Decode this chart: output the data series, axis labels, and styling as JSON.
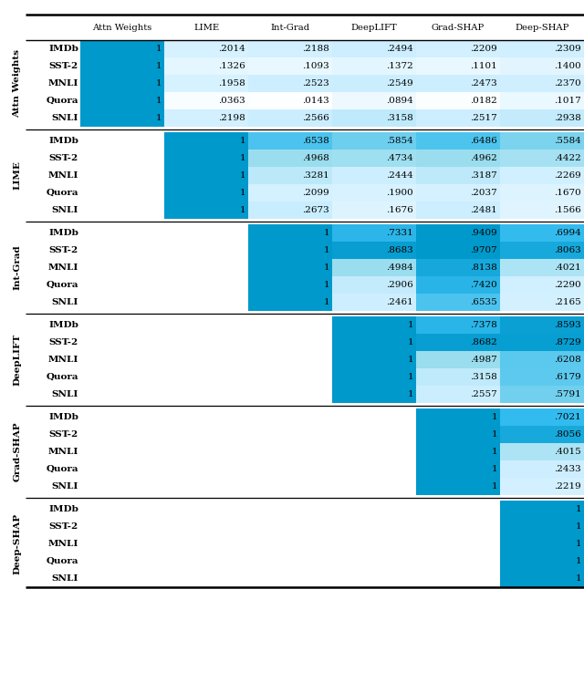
{
  "col_headers": [
    "Attn Weights",
    "LIME",
    "Int-Grad",
    "DeepLIFT",
    "Grad-SHAP",
    "Deep-SHAP"
  ],
  "row_groups": [
    "Attn Weights",
    "LIME",
    "Int-Grad",
    "DeepLIFT",
    "Grad-SHAP",
    "Deep-SHAP"
  ],
  "datasets": [
    "IMDb",
    "SST-2",
    "MNLI",
    "Quora",
    "SNLI"
  ],
  "values": [
    [
      1,
      0.2014,
      0.2188,
      0.2494,
      0.2209,
      0.2309
    ],
    [
      1,
      0.1326,
      0.1093,
      0.1372,
      0.1101,
      0.14
    ],
    [
      1,
      0.1958,
      0.2523,
      0.2549,
      0.2473,
      0.237
    ],
    [
      1,
      0.0363,
      0.0143,
      0.0894,
      0.0182,
      0.1017
    ],
    [
      1,
      0.2198,
      0.2566,
      0.3158,
      0.2517,
      0.2938
    ],
    [
      null,
      1,
      0.6538,
      0.5854,
      0.6486,
      0.5584
    ],
    [
      null,
      1,
      0.4968,
      0.4734,
      0.4962,
      0.4422
    ],
    [
      null,
      1,
      0.3281,
      0.2444,
      0.3187,
      0.2269
    ],
    [
      null,
      1,
      0.2099,
      0.19,
      0.2037,
      0.167
    ],
    [
      null,
      1,
      0.2673,
      0.1676,
      0.2481,
      0.1566
    ],
    [
      null,
      null,
      1,
      0.7331,
      0.9409,
      0.6994
    ],
    [
      null,
      null,
      1,
      0.8683,
      0.9707,
      0.8063
    ],
    [
      null,
      null,
      1,
      0.4984,
      0.8138,
      0.4021
    ],
    [
      null,
      null,
      1,
      0.2906,
      0.742,
      0.229
    ],
    [
      null,
      null,
      1,
      0.2461,
      0.6535,
      0.2165
    ],
    [
      null,
      null,
      null,
      1,
      0.7378,
      0.8593
    ],
    [
      null,
      null,
      null,
      1,
      0.8682,
      0.8729
    ],
    [
      null,
      null,
      null,
      1,
      0.4987,
      0.6208
    ],
    [
      null,
      null,
      null,
      1,
      0.3158,
      0.6179
    ],
    [
      null,
      null,
      null,
      1,
      0.2557,
      0.5791
    ],
    [
      null,
      null,
      null,
      null,
      1,
      0.7021
    ],
    [
      null,
      null,
      null,
      null,
      1,
      0.8056
    ],
    [
      null,
      null,
      null,
      null,
      1,
      0.4015
    ],
    [
      null,
      null,
      null,
      null,
      1,
      0.2433
    ],
    [
      null,
      null,
      null,
      null,
      1,
      0.2219
    ],
    [
      null,
      null,
      null,
      null,
      null,
      1
    ],
    [
      null,
      null,
      null,
      null,
      null,
      1
    ],
    [
      null,
      null,
      null,
      null,
      null,
      1
    ],
    [
      null,
      null,
      null,
      null,
      null,
      1
    ],
    [
      null,
      null,
      null,
      null,
      null,
      1
    ]
  ],
  "display_values": [
    [
      "1",
      ".2014",
      ".2188",
      ".2494",
      ".2209",
      ".2309"
    ],
    [
      "1",
      ".1326",
      ".1093",
      ".1372",
      ".1101",
      ".1400"
    ],
    [
      "1",
      ".1958",
      ".2523",
      ".2549",
      ".2473",
      ".2370"
    ],
    [
      "1",
      ".0363",
      ".0143",
      ".0894",
      ".0182",
      ".1017"
    ],
    [
      "1",
      ".2198",
      ".2566",
      ".3158",
      ".2517",
      ".2938"
    ],
    [
      "",
      "1",
      ".6538",
      ".5854",
      ".6486",
      ".5584"
    ],
    [
      "",
      "1",
      ".4968",
      ".4734",
      ".4962",
      ".4422"
    ],
    [
      "",
      "1",
      ".3281",
      ".2444",
      ".3187",
      ".2269"
    ],
    [
      "",
      "1",
      ".2099",
      ".1900",
      ".2037",
      ".1670"
    ],
    [
      "",
      "1",
      ".2673",
      ".1676",
      ".2481",
      ".1566"
    ],
    [
      "",
      "",
      "1",
      ".7331",
      ".9409",
      ".6994"
    ],
    [
      "",
      "",
      "1",
      ".8683",
      ".9707",
      ".8063"
    ],
    [
      "",
      "",
      "1",
      ".4984",
      ".8138",
      ".4021"
    ],
    [
      "",
      "",
      "1",
      ".2906",
      ".7420",
      ".2290"
    ],
    [
      "",
      "",
      "1",
      ".2461",
      ".6535",
      ".2165"
    ],
    [
      "",
      "",
      "",
      "1",
      ".7378",
      ".8593"
    ],
    [
      "",
      "",
      "",
      "1",
      ".8682",
      ".8729"
    ],
    [
      "",
      "",
      "",
      "1",
      ".4987",
      ".6208"
    ],
    [
      "",
      "",
      "",
      "1",
      ".3158",
      ".6179"
    ],
    [
      "",
      "",
      "",
      "1",
      ".2557",
      ".5791"
    ],
    [
      "",
      "",
      "",
      "",
      "1",
      ".7021"
    ],
    [
      "",
      "",
      "",
      "",
      "1",
      ".8056"
    ],
    [
      "",
      "",
      "",
      "",
      "1",
      ".4015"
    ],
    [
      "",
      "",
      "",
      "",
      "1",
      ".2433"
    ],
    [
      "",
      "",
      "",
      "",
      "1",
      ".2219"
    ],
    [
      "",
      "",
      "",
      "",
      "",
      "1"
    ],
    [
      "",
      "",
      "",
      "",
      "",
      "1"
    ],
    [
      "",
      "",
      "",
      "",
      "",
      "1"
    ],
    [
      "",
      "",
      "",
      "",
      "",
      "1"
    ],
    [
      "",
      "",
      "",
      "",
      "",
      "1"
    ]
  ],
  "color_dark": "#0099CC",
  "color_mid": "#33BBEE",
  "color_light": "#99DDEE",
  "color_lightest": "#CCEEFF",
  "bg_color": "#FFFFFF",
  "text_color": "#000000",
  "figsize": [
    6.4,
    7.48
  ],
  "dpi": 100
}
